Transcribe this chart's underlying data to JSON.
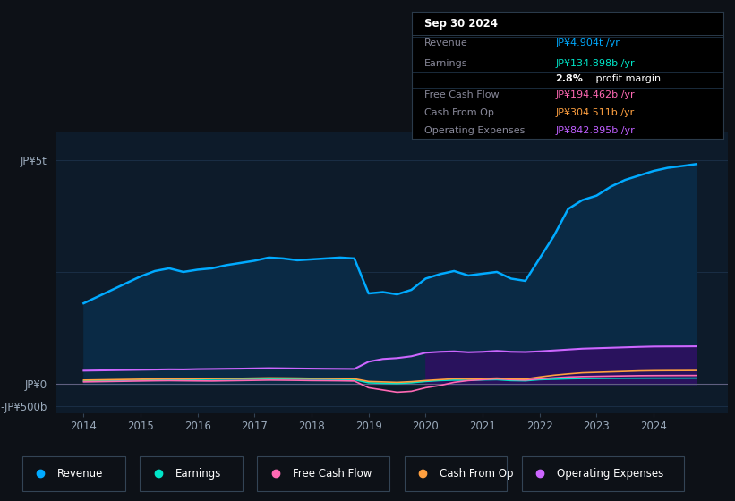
{
  "bg_color": "#0d1117",
  "plot_bg_color": "#0d1b2a",
  "grid_color": "#1e3050",
  "title_date": "Sep 30 2024",
  "info_box_bg": "#000000",
  "info": {
    "Revenue": {
      "label": "Revenue",
      "value": "JP¥4.904t /yr",
      "color": "#00aaff"
    },
    "Earnings": {
      "label": "Earnings",
      "value": "JP¥134.898b /yr",
      "color": "#00e5c8"
    },
    "profit_margin_bold": "2.8%",
    "profit_margin_rest": " profit margin",
    "Free Cash Flow": {
      "label": "Free Cash Flow",
      "value": "JP¥194.462b /yr",
      "color": "#ff69b4"
    },
    "Cash From Op": {
      "label": "Cash From Op",
      "value": "JP¥304.511b /yr",
      "color": "#ffa040"
    },
    "Operating Expenses": {
      "label": "Operating Expenses",
      "value": "JP¥842.895b /yr",
      "color": "#bf5fff"
    }
  },
  "ytick_labels": [
    "JP¥5t",
    "JP¥0",
    "-JP¥500b"
  ],
  "ytick_vals": [
    5000,
    0,
    -500
  ],
  "xlim": [
    2013.5,
    2025.3
  ],
  "ylim": [
    -650,
    5600
  ],
  "colors": {
    "revenue_line": "#00aaff",
    "revenue_fill": "#0a2a45",
    "earnings_line": "#00e5c8",
    "fcf_line": "#ff69b4",
    "cashop_line": "#ffa040",
    "opex_line": "#cc66ff",
    "opex_fill": "#2d1060",
    "zero_line": "#606080",
    "grid_h": "#1a2e45"
  },
  "legend": [
    {
      "label": "Revenue",
      "color": "#00aaff"
    },
    {
      "label": "Earnings",
      "color": "#00e5c8"
    },
    {
      "label": "Free Cash Flow",
      "color": "#ff69b4"
    },
    {
      "label": "Cash From Op",
      "color": "#ffa040"
    },
    {
      "label": "Operating Expenses",
      "color": "#cc66ff"
    }
  ]
}
